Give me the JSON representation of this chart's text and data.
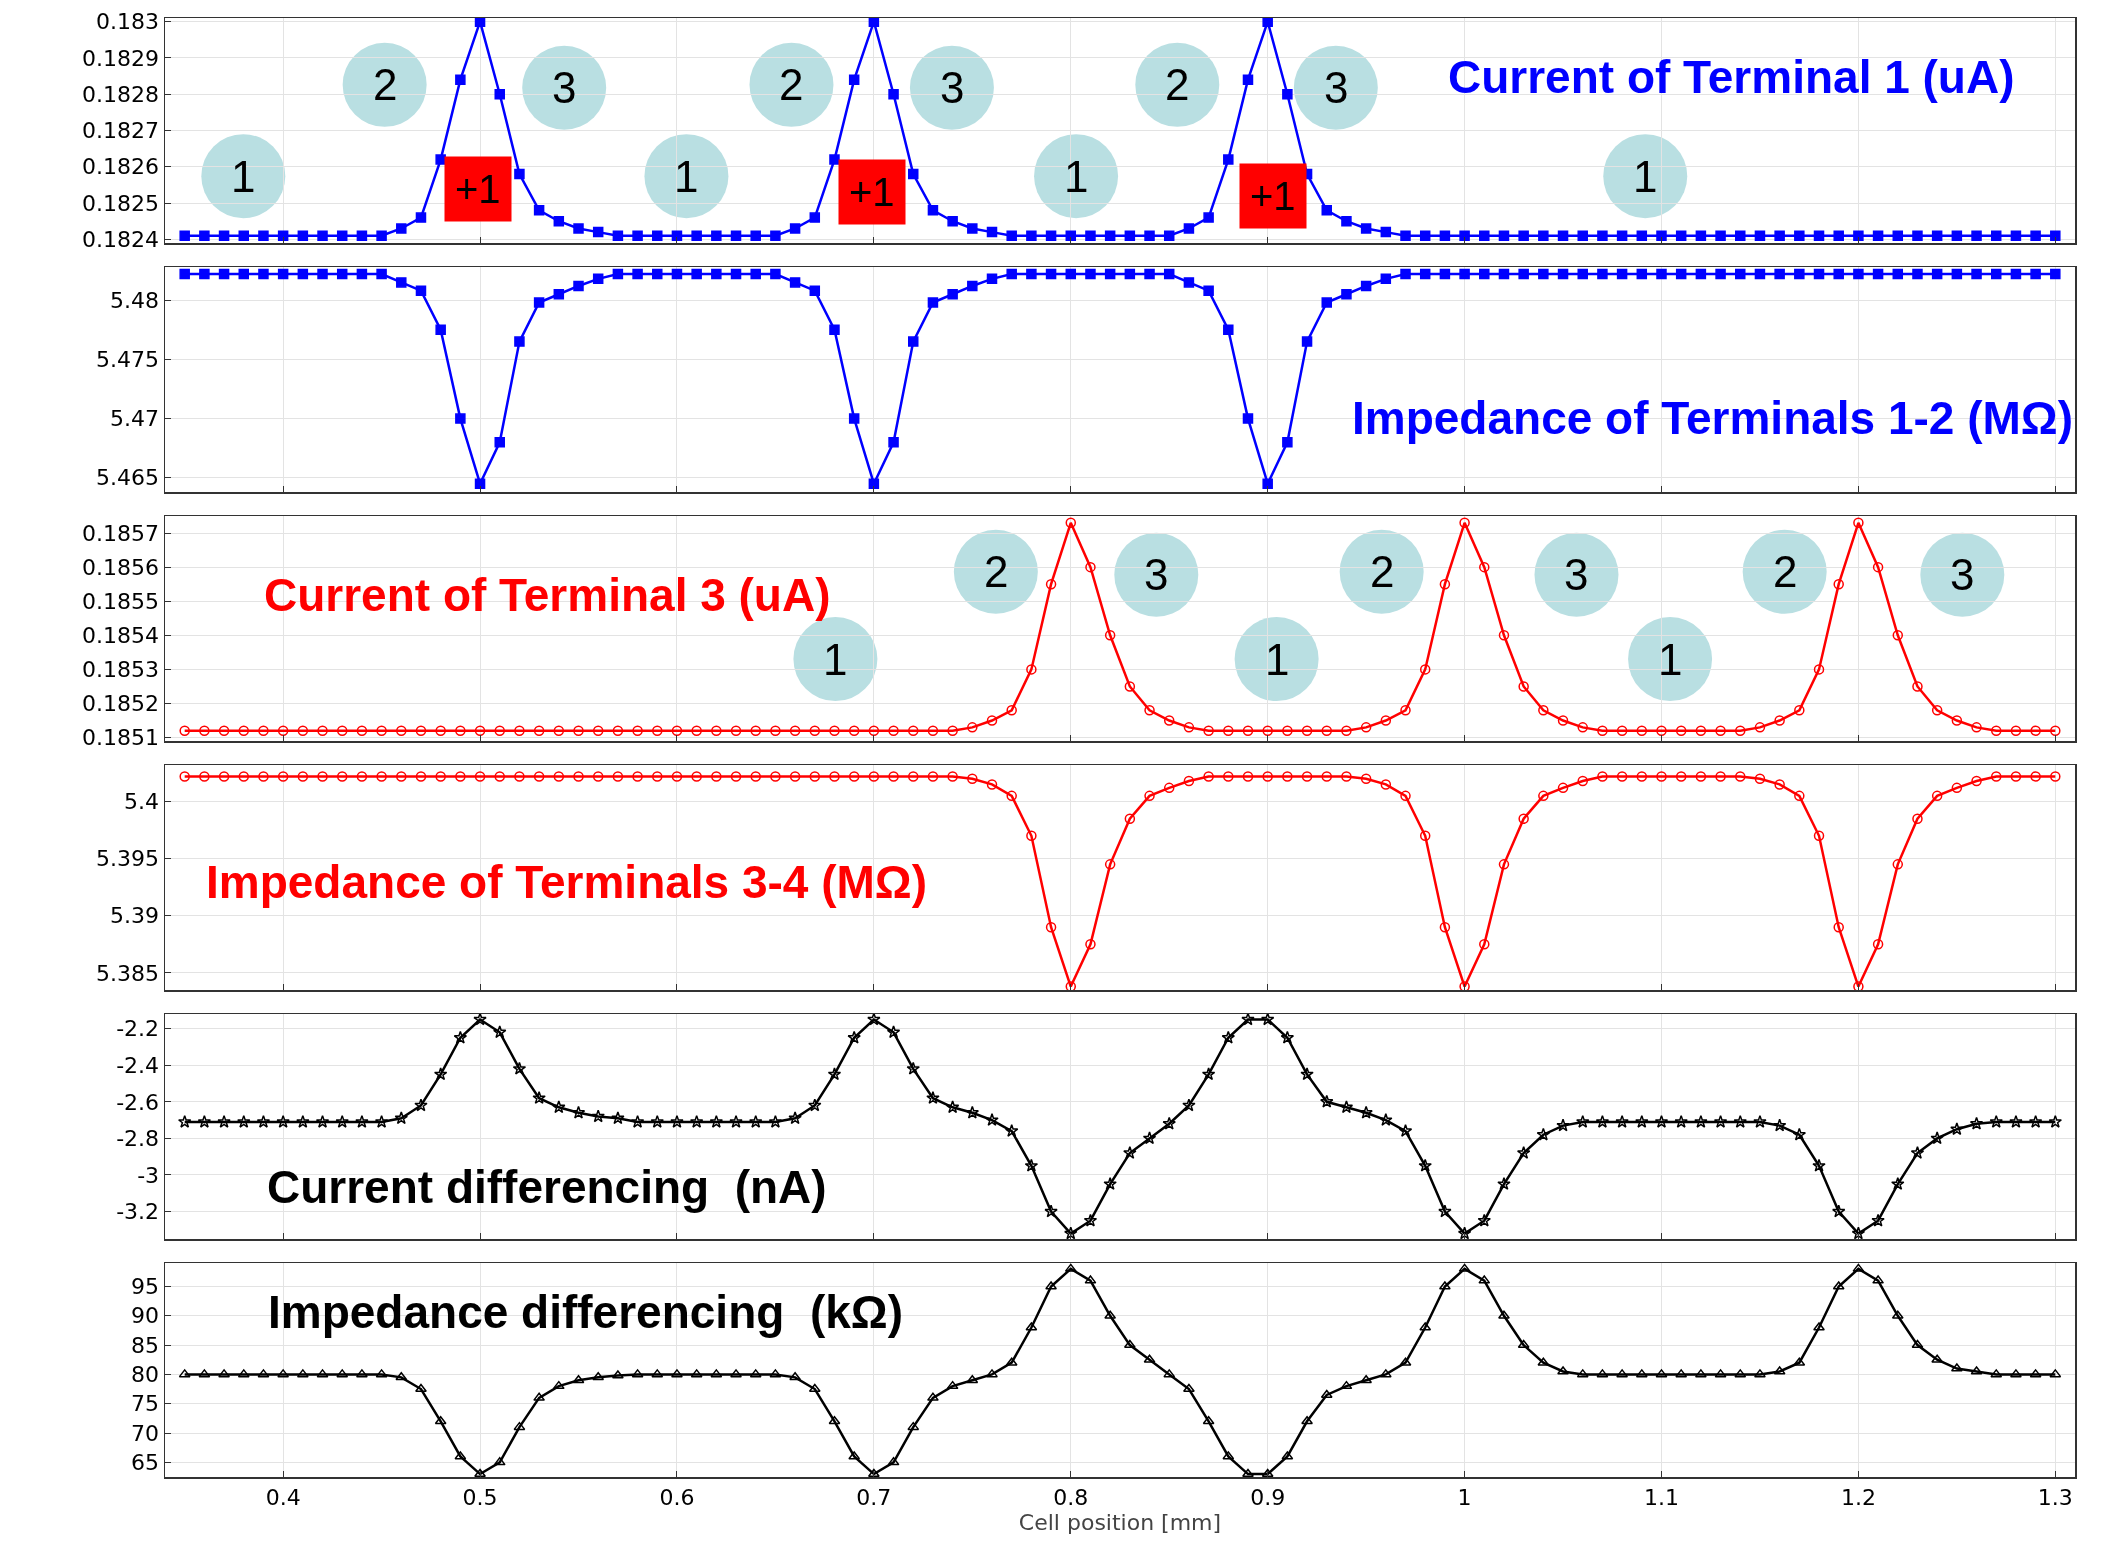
{
  "chart_data": [
    {
      "type": "line",
      "title": "Current of Terminal 1 (uA)",
      "xlim": [
        0.34,
        1.31
      ],
      "xticks": [
        0.4,
        0.5,
        0.6,
        0.7,
        0.8,
        0.9,
        1,
        1.1,
        1.2,
        1.3
      ],
      "ylim": [
        0.18239,
        0.18301
      ],
      "yticks": [
        0.1824,
        0.1825,
        0.1826,
        0.1827,
        0.1828,
        0.1829,
        0.183
      ],
      "grid": true,
      "tick_labels": "y",
      "marker": "square",
      "x": [
        0.35,
        0.36,
        0.37,
        0.38,
        0.39,
        0.4,
        0.41,
        0.42,
        0.43,
        0.44,
        0.45,
        0.46,
        0.47,
        0.48,
        0.49,
        0.5,
        0.51,
        0.52,
        0.53,
        0.54,
        0.55,
        0.56,
        0.57,
        0.58,
        0.59,
        0.6,
        0.61,
        0.62,
        0.63,
        0.64,
        0.65,
        0.66,
        0.67,
        0.68,
        0.69,
        0.7,
        0.71,
        0.72,
        0.73,
        0.74,
        0.75,
        0.76,
        0.77,
        0.78,
        0.79,
        0.8,
        0.81,
        0.82,
        0.83,
        0.84,
        0.85,
        0.86,
        0.87,
        0.88,
        0.89,
        0.9,
        0.91,
        0.92,
        0.93,
        0.94,
        0.95,
        0.96,
        0.97,
        0.98,
        0.99,
        1,
        1.01,
        1.02,
        1.03,
        1.04,
        1.05,
        1.06,
        1.07,
        1.08,
        1.09,
        1.1,
        1.11,
        1.12,
        1.13,
        1.14,
        1.15,
        1.16,
        1.17,
        1.18,
        1.19,
        1.2,
        1.21,
        1.22,
        1.23,
        1.24,
        1.25,
        1.26,
        1.27,
        1.28,
        1.29,
        1.3
      ],
      "series": [
        {
          "color": "#0000ff",
          "values": [
            0.18241,
            0.18241,
            0.18241,
            0.18241,
            0.18241,
            0.18241,
            0.18241,
            0.18241,
            0.18241,
            0.18241,
            0.18241,
            0.18243,
            0.18246,
            0.18262,
            0.18284,
            0.183,
            0.1828,
            0.18258,
            0.18248,
            0.18245,
            0.18243,
            0.18242,
            0.18241,
            0.18241,
            0.18241,
            0.18241,
            0.18241,
            0.18241,
            0.18241,
            0.18241,
            0.18241,
            0.18243,
            0.18246,
            0.18262,
            0.18284,
            0.183,
            0.1828,
            0.18258,
            0.18248,
            0.18245,
            0.18243,
            0.18242,
            0.18241,
            0.18241,
            0.18241,
            0.18241,
            0.18241,
            0.18241,
            0.18241,
            0.18241,
            0.18241,
            0.18243,
            0.18246,
            0.18262,
            0.18284,
            0.183,
            0.1828,
            0.18258,
            0.18248,
            0.18245,
            0.18243,
            0.18242,
            0.18241,
            0.18241,
            0.18241,
            0.18241,
            0.18241,
            0.18241,
            0.18241,
            0.18241,
            0.18241,
            0.18241,
            0.18241,
            0.18241,
            0.18241,
            0.18241,
            0.18241,
            0.18241,
            0.18241,
            0.18241,
            0.18241,
            0.18241,
            0.18241,
            0.18241,
            0.18241,
            0.18241,
            0.18241,
            0.18241,
            0.18241,
            0.18241,
            0.18241,
            0.18241,
            0.18241,
            0.18241,
            0.18241,
            0.18241
          ]
        }
      ],
      "annotations": [
        "1",
        "2",
        "+1",
        "3",
        "1",
        "2",
        "+1",
        "3",
        "1",
        "2",
        "+1",
        "3",
        "1"
      ]
    },
    {
      "type": "line",
      "title": "Impedance of Terminals 1-2 (MΩ)",
      "xlim": [
        0.34,
        1.31
      ],
      "xticks": [
        0.4,
        0.5,
        0.6,
        0.7,
        0.8,
        0.9,
        1,
        1.1,
        1.2,
        1.3
      ],
      "ylim": [
        5.4638,
        5.4828
      ],
      "yticks": [
        5.465,
        5.47,
        5.475,
        5.48
      ],
      "grid": true,
      "tick_labels": "y",
      "marker": "square",
      "x": [
        0.35,
        0.36,
        0.37,
        0.38,
        0.39,
        0.4,
        0.41,
        0.42,
        0.43,
        0.44,
        0.45,
        0.46,
        0.47,
        0.48,
        0.49,
        0.5,
        0.51,
        0.52,
        0.53,
        0.54,
        0.55,
        0.56,
        0.57,
        0.58,
        0.59,
        0.6,
        0.61,
        0.62,
        0.63,
        0.64,
        0.65,
        0.66,
        0.67,
        0.68,
        0.69,
        0.7,
        0.71,
        0.72,
        0.73,
        0.74,
        0.75,
        0.76,
        0.77,
        0.78,
        0.79,
        0.8,
        0.81,
        0.82,
        0.83,
        0.84,
        0.85,
        0.86,
        0.87,
        0.88,
        0.89,
        0.9,
        0.91,
        0.92,
        0.93,
        0.94,
        0.95,
        0.96,
        0.97,
        0.98,
        0.99,
        1,
        1.01,
        1.02,
        1.03,
        1.04,
        1.05,
        1.06,
        1.07,
        1.08,
        1.09,
        1.1,
        1.11,
        1.12,
        1.13,
        1.14,
        1.15,
        1.16,
        1.17,
        1.18,
        1.19,
        1.2,
        1.21,
        1.22,
        1.23,
        1.24,
        1.25,
        1.26,
        1.27,
        1.28,
        1.29,
        1.3
      ],
      "series": [
        {
          "color": "#0000ff",
          "values": [
            5.4822,
            5.4822,
            5.4822,
            5.4822,
            5.4822,
            5.4822,
            5.4822,
            5.4822,
            5.4822,
            5.4822,
            5.4822,
            5.4815,
            5.4808,
            5.4775,
            5.47,
            5.4645,
            5.468,
            5.4765,
            5.4798,
            5.4805,
            5.4812,
            5.4818,
            5.4822,
            5.4822,
            5.4822,
            5.4822,
            5.4822,
            5.4822,
            5.4822,
            5.4822,
            5.4822,
            5.4815,
            5.4808,
            5.4775,
            5.47,
            5.4645,
            5.468,
            5.4765,
            5.4798,
            5.4805,
            5.4812,
            5.4818,
            5.4822,
            5.4822,
            5.4822,
            5.4822,
            5.4822,
            5.4822,
            5.4822,
            5.4822,
            5.4822,
            5.4815,
            5.4808,
            5.4775,
            5.47,
            5.4645,
            5.468,
            5.4765,
            5.4798,
            5.4805,
            5.4812,
            5.4818,
            5.4822,
            5.4822,
            5.4822,
            5.4822,
            5.4822,
            5.4822,
            5.4822,
            5.4822,
            5.4822,
            5.4822,
            5.4822,
            5.4822,
            5.4822,
            5.4822,
            5.4822,
            5.4822,
            5.4822,
            5.4822,
            5.4822,
            5.4822,
            5.4822,
            5.4822,
            5.4822,
            5.4822,
            5.4822,
            5.4822,
            5.4822,
            5.4822,
            5.4822,
            5.4822,
            5.4822,
            5.4822,
            5.4822,
            5.4822
          ]
        }
      ]
    },
    {
      "type": "line",
      "title": "Current of Terminal 3 (uA)",
      "xlim": [
        0.34,
        1.31
      ],
      "xticks": [
        0.4,
        0.5,
        0.6,
        0.7,
        0.8,
        0.9,
        1,
        1.1,
        1.2,
        1.3
      ],
      "ylim": [
        0.18509,
        0.18575
      ],
      "yticks": [
        0.1851,
        0.1852,
        0.1853,
        0.1854,
        0.1855,
        0.1856,
        0.1857
      ],
      "grid": true,
      "tick_labels": "y",
      "marker": "circle",
      "x": [
        0.35,
        0.36,
        0.37,
        0.38,
        0.39,
        0.4,
        0.41,
        0.42,
        0.43,
        0.44,
        0.45,
        0.46,
        0.47,
        0.48,
        0.49,
        0.5,
        0.51,
        0.52,
        0.53,
        0.54,
        0.55,
        0.56,
        0.57,
        0.58,
        0.59,
        0.6,
        0.61,
        0.62,
        0.63,
        0.64,
        0.65,
        0.66,
        0.67,
        0.68,
        0.69,
        0.7,
        0.71,
        0.72,
        0.73,
        0.74,
        0.75,
        0.76,
        0.77,
        0.78,
        0.79,
        0.8,
        0.81,
        0.82,
        0.83,
        0.84,
        0.85,
        0.86,
        0.87,
        0.88,
        0.89,
        0.9,
        0.91,
        0.92,
        0.93,
        0.94,
        0.95,
        0.96,
        0.97,
        0.98,
        0.99,
        1,
        1.01,
        1.02,
        1.03,
        1.04,
        1.05,
        1.06,
        1.07,
        1.08,
        1.09,
        1.1,
        1.11,
        1.12,
        1.13,
        1.14,
        1.15,
        1.16,
        1.17,
        1.18,
        1.19,
        1.2,
        1.21,
        1.22,
        1.23,
        1.24,
        1.25,
        1.26,
        1.27,
        1.28,
        1.29,
        1.3
      ],
      "series": [
        {
          "color": "#ff0000",
          "values": [
            0.18512,
            0.18512,
            0.18512,
            0.18512,
            0.18512,
            0.18512,
            0.18512,
            0.18512,
            0.18512,
            0.18512,
            0.18512,
            0.18512,
            0.18512,
            0.18512,
            0.18512,
            0.18512,
            0.18512,
            0.18512,
            0.18512,
            0.18512,
            0.18512,
            0.18512,
            0.18512,
            0.18512,
            0.18512,
            0.18512,
            0.18512,
            0.18512,
            0.18512,
            0.18512,
            0.18512,
            0.18512,
            0.18512,
            0.18512,
            0.18512,
            0.18512,
            0.18512,
            0.18512,
            0.18512,
            0.18512,
            0.18513,
            0.18515,
            0.18518,
            0.1853,
            0.18555,
            0.18573,
            0.1856,
            0.1854,
            0.18525,
            0.18518,
            0.18515,
            0.18513,
            0.18512,
            0.18512,
            0.18512,
            0.18512,
            0.18512,
            0.18512,
            0.18512,
            0.18512,
            0.18513,
            0.18515,
            0.18518,
            0.1853,
            0.18555,
            0.18573,
            0.1856,
            0.1854,
            0.18525,
            0.18518,
            0.18515,
            0.18513,
            0.18512,
            0.18512,
            0.18512,
            0.18512,
            0.18512,
            0.18512,
            0.18512,
            0.18512,
            0.18513,
            0.18515,
            0.18518,
            0.1853,
            0.18555,
            0.18573,
            0.1856,
            0.1854,
            0.18525,
            0.18518,
            0.18515,
            0.18513,
            0.18512,
            0.18512,
            0.18512,
            0.18512
          ]
        }
      ],
      "annotations": [
        "2",
        "3",
        "1",
        "1",
        "2",
        "3",
        "1",
        "2",
        "3"
      ]
    },
    {
      "type": "line",
      "title": "Impedance of Terminals 3-4 (MΩ)",
      "xlim": [
        0.34,
        1.31
      ],
      "xticks": [
        0.4,
        0.5,
        0.6,
        0.7,
        0.8,
        0.9,
        1,
        1.1,
        1.2,
        1.3
      ],
      "ylim": [
        5.3835,
        5.4032
      ],
      "yticks": [
        5.385,
        5.39,
        5.395,
        5.4
      ],
      "grid": true,
      "tick_labels": "y",
      "marker": "circle",
      "x": [
        0.35,
        0.36,
        0.37,
        0.38,
        0.39,
        0.4,
        0.41,
        0.42,
        0.43,
        0.44,
        0.45,
        0.46,
        0.47,
        0.48,
        0.49,
        0.5,
        0.51,
        0.52,
        0.53,
        0.54,
        0.55,
        0.56,
        0.57,
        0.58,
        0.59,
        0.6,
        0.61,
        0.62,
        0.63,
        0.64,
        0.65,
        0.66,
        0.67,
        0.68,
        0.69,
        0.7,
        0.71,
        0.72,
        0.73,
        0.74,
        0.75,
        0.76,
        0.77,
        0.78,
        0.79,
        0.8,
        0.81,
        0.82,
        0.83,
        0.84,
        0.85,
        0.86,
        0.87,
        0.88,
        0.89,
        0.9,
        0.91,
        0.92,
        0.93,
        0.94,
        0.95,
        0.96,
        0.97,
        0.98,
        0.99,
        1,
        1.01,
        1.02,
        1.03,
        1.04,
        1.05,
        1.06,
        1.07,
        1.08,
        1.09,
        1.1,
        1.11,
        1.12,
        1.13,
        1.14,
        1.15,
        1.16,
        1.17,
        1.18,
        1.19,
        1.2,
        1.21,
        1.22,
        1.23,
        1.24,
        1.25,
        1.26,
        1.27,
        1.28,
        1.29,
        1.3
      ],
      "series": [
        {
          "color": "#ff0000",
          "values": [
            5.4022,
            5.4022,
            5.4022,
            5.4022,
            5.4022,
            5.4022,
            5.4022,
            5.4022,
            5.4022,
            5.4022,
            5.4022,
            5.4022,
            5.4022,
            5.4022,
            5.4022,
            5.4022,
            5.4022,
            5.4022,
            5.4022,
            5.4022,
            5.4022,
            5.4022,
            5.4022,
            5.4022,
            5.4022,
            5.4022,
            5.4022,
            5.4022,
            5.4022,
            5.4022,
            5.4022,
            5.4022,
            5.4022,
            5.4022,
            5.4022,
            5.4022,
            5.4022,
            5.4022,
            5.4022,
            5.4022,
            5.402,
            5.4015,
            5.4005,
            5.397,
            5.389,
            5.3838,
            5.3875,
            5.3945,
            5.3985,
            5.4005,
            5.4012,
            5.4018,
            5.4022,
            5.4022,
            5.4022,
            5.4022,
            5.4022,
            5.4022,
            5.4022,
            5.4022,
            5.402,
            5.4015,
            5.4005,
            5.397,
            5.389,
            5.3838,
            5.3875,
            5.3945,
            5.3985,
            5.4005,
            5.4012,
            5.4018,
            5.4022,
            5.4022,
            5.4022,
            5.4022,
            5.4022,
            5.4022,
            5.4022,
            5.4022,
            5.402,
            5.4015,
            5.4005,
            5.397,
            5.389,
            5.3838,
            5.3875,
            5.3945,
            5.3985,
            5.4005,
            5.4012,
            5.4018,
            5.4022,
            5.4022,
            5.4022,
            5.4022
          ]
        }
      ]
    },
    {
      "type": "line",
      "title": "Current differencing  (nA)",
      "xlim": [
        0.34,
        1.31
      ],
      "xticks": [
        0.4,
        0.5,
        0.6,
        0.7,
        0.8,
        0.9,
        1,
        1.1,
        1.2,
        1.3
      ],
      "ylim": [
        -3.35,
        -2.12
      ],
      "yticks": [
        -3.2,
        -3,
        -2.8,
        -2.6,
        -2.4,
        -2.2
      ],
      "grid": true,
      "tick_labels": "y",
      "marker": "star",
      "x": [
        0.35,
        0.36,
        0.37,
        0.38,
        0.39,
        0.4,
        0.41,
        0.42,
        0.43,
        0.44,
        0.45,
        0.46,
        0.47,
        0.48,
        0.49,
        0.5,
        0.51,
        0.52,
        0.53,
        0.54,
        0.55,
        0.56,
        0.57,
        0.58,
        0.59,
        0.6,
        0.61,
        0.62,
        0.63,
        0.64,
        0.65,
        0.66,
        0.67,
        0.68,
        0.69,
        0.7,
        0.71,
        0.72,
        0.73,
        0.74,
        0.75,
        0.76,
        0.77,
        0.78,
        0.79,
        0.8,
        0.81,
        0.82,
        0.83,
        0.84,
        0.85,
        0.86,
        0.87,
        0.88,
        0.89,
        0.9,
        0.91,
        0.92,
        0.93,
        0.94,
        0.95,
        0.96,
        0.97,
        0.98,
        0.99,
        1,
        1.01,
        1.02,
        1.03,
        1.04,
        1.05,
        1.06,
        1.07,
        1.08,
        1.09,
        1.1,
        1.11,
        1.12,
        1.13,
        1.14,
        1.15,
        1.16,
        1.17,
        1.18,
        1.19,
        1.2,
        1.21,
        1.22,
        1.23,
        1.24,
        1.25,
        1.26,
        1.27,
        1.28,
        1.29,
        1.3
      ],
      "series": [
        {
          "color": "#000000",
          "values": [
            -2.71,
            -2.71,
            -2.71,
            -2.71,
            -2.71,
            -2.71,
            -2.71,
            -2.71,
            -2.71,
            -2.71,
            -2.71,
            -2.69,
            -2.62,
            -2.45,
            -2.25,
            -2.15,
            -2.22,
            -2.42,
            -2.58,
            -2.63,
            -2.66,
            -2.68,
            -2.69,
            -2.71,
            -2.71,
            -2.71,
            -2.71,
            -2.71,
            -2.71,
            -2.71,
            -2.71,
            -2.69,
            -2.62,
            -2.45,
            -2.25,
            -2.15,
            -2.22,
            -2.42,
            -2.58,
            -2.63,
            -2.66,
            -2.7,
            -2.76,
            -2.95,
            -3.2,
            -3.32,
            -3.25,
            -3.05,
            -2.88,
            -2.8,
            -2.72,
            -2.62,
            -2.45,
            -2.25,
            -2.15,
            -2.15,
            -2.25,
            -2.45,
            -2.6,
            -2.63,
            -2.66,
            -2.7,
            -2.76,
            -2.95,
            -3.2,
            -3.32,
            -3.25,
            -3.05,
            -2.88,
            -2.78,
            -2.73,
            -2.71,
            -2.71,
            -2.71,
            -2.71,
            -2.71,
            -2.71,
            -2.71,
            -2.71,
            -2.71,
            -2.71,
            -2.73,
            -2.78,
            -2.95,
            -3.2,
            -3.32,
            -3.25,
            -3.05,
            -2.88,
            -2.8,
            -2.75,
            -2.72,
            -2.71,
            -2.71,
            -2.71,
            -2.71
          ]
        }
      ]
    },
    {
      "type": "line",
      "title": "Impedance differencing  (kΩ)",
      "xlabel": "Cell position [mm]",
      "xlim": [
        0.34,
        1.31
      ],
      "xticks": [
        0.4,
        0.5,
        0.6,
        0.7,
        0.8,
        0.9,
        1,
        1.1,
        1.2,
        1.3
      ],
      "ylim": [
        62.5,
        99
      ],
      "yticks": [
        65,
        70,
        75,
        80,
        85,
        90,
        95
      ],
      "grid": true,
      "marker": "triangle",
      "x": [
        0.35,
        0.36,
        0.37,
        0.38,
        0.39,
        0.4,
        0.41,
        0.42,
        0.43,
        0.44,
        0.45,
        0.46,
        0.47,
        0.48,
        0.49,
        0.5,
        0.51,
        0.52,
        0.53,
        0.54,
        0.55,
        0.56,
        0.57,
        0.58,
        0.59,
        0.6,
        0.61,
        0.62,
        0.63,
        0.64,
        0.65,
        0.66,
        0.67,
        0.68,
        0.69,
        0.7,
        0.71,
        0.72,
        0.73,
        0.74,
        0.75,
        0.76,
        0.77,
        0.78,
        0.79,
        0.8,
        0.81,
        0.82,
        0.83,
        0.84,
        0.85,
        0.86,
        0.87,
        0.88,
        0.89,
        0.9,
        0.91,
        0.92,
        0.93,
        0.94,
        0.95,
        0.96,
        0.97,
        0.98,
        0.99,
        1,
        1.01,
        1.02,
        1.03,
        1.04,
        1.05,
        1.06,
        1.07,
        1.08,
        1.09,
        1.1,
        1.11,
        1.12,
        1.13,
        1.14,
        1.15,
        1.16,
        1.17,
        1.18,
        1.19,
        1.2,
        1.21,
        1.22,
        1.23,
        1.24,
        1.25,
        1.26,
        1.27,
        1.28,
        1.29,
        1.3
      ],
      "series": [
        {
          "color": "#000000",
          "values": [
            80,
            80,
            80,
            80,
            80,
            80,
            80,
            80,
            80,
            80,
            80,
            79.5,
            77.5,
            72,
            66,
            63,
            65,
            71,
            76,
            78,
            79,
            79.5,
            79.8,
            80,
            80,
            80,
            80,
            80,
            80,
            80,
            80,
            79.5,
            77.5,
            72,
            66,
            63,
            65,
            71,
            76,
            78,
            79,
            80,
            82,
            88,
            95,
            98,
            96,
            90,
            85,
            82.5,
            80,
            77.5,
            72,
            66,
            63,
            63,
            66,
            72,
            76.5,
            78,
            79,
            80,
            82,
            88,
            95,
            98,
            96,
            90,
            85,
            82,
            80.5,
            80,
            80,
            80,
            80,
            80,
            80,
            80,
            80,
            80,
            80,
            80.5,
            82,
            88,
            95,
            98,
            96,
            90,
            85,
            82.5,
            81,
            80.5,
            80,
            80,
            80,
            80
          ]
        }
      ]
    }
  ]
}
